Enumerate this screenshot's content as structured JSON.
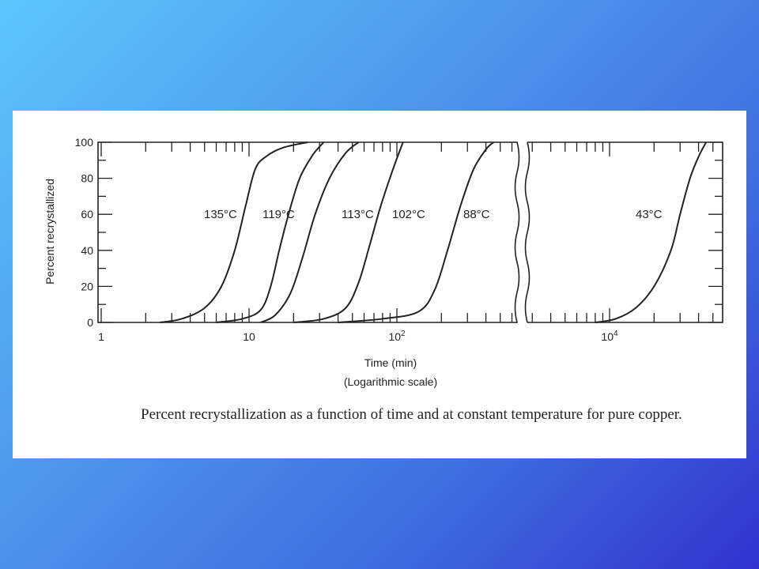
{
  "chart_data": {
    "type": "line",
    "title": "",
    "ylabel": "Percent recrystallized",
    "xlabel": "Time (min)",
    "xlabel_sub": "(Logarithmic scale)",
    "xscale": "log",
    "x_axis_break": true,
    "ylim": [
      0,
      100
    ],
    "yticks": [
      "0",
      "20",
      "40",
      "60",
      "80",
      "100"
    ],
    "xticks": [
      {
        "label": "1",
        "value": 1
      },
      {
        "label": "10",
        "value": 10
      },
      {
        "label": "10",
        "sup": "2",
        "value": 100
      },
      {
        "label": "10",
        "sup": "4",
        "value": 10000
      }
    ],
    "series": [
      {
        "name": "135°C",
        "points": [
          [
            2.5,
            0
          ],
          [
            3.5,
            2
          ],
          [
            5,
            8
          ],
          [
            6.5,
            20
          ],
          [
            8,
            40
          ],
          [
            9.5,
            65
          ],
          [
            11,
            85
          ],
          [
            13,
            92
          ],
          [
            17,
            97
          ],
          [
            25,
            100
          ]
        ]
      },
      {
        "name": "119°C",
        "points": [
          [
            6,
            0
          ],
          [
            9,
            2
          ],
          [
            12,
            7
          ],
          [
            14,
            20
          ],
          [
            16,
            40
          ],
          [
            18.5,
            60
          ],
          [
            22,
            80
          ],
          [
            27,
            93
          ],
          [
            32,
            100
          ]
        ]
      },
      {
        "name": "113°C",
        "points": [
          [
            12,
            0
          ],
          [
            15,
            4
          ],
          [
            19,
            16
          ],
          [
            23,
            36
          ],
          [
            28,
            60
          ],
          [
            35,
            80
          ],
          [
            45,
            94
          ],
          [
            55,
            100
          ]
        ]
      },
      {
        "name": "102°C",
        "points": [
          [
            20,
            0
          ],
          [
            32,
            2
          ],
          [
            45,
            8
          ],
          [
            55,
            22
          ],
          [
            65,
            42
          ],
          [
            78,
            65
          ],
          [
            95,
            86
          ],
          [
            110,
            100
          ]
        ]
      },
      {
        "name": "88°C",
        "points": [
          [
            40,
            0
          ],
          [
            80,
            2
          ],
          [
            140,
            6
          ],
          [
            180,
            18
          ],
          [
            220,
            40
          ],
          [
            270,
            65
          ],
          [
            330,
            85
          ],
          [
            400,
            96
          ],
          [
            450,
            100
          ]
        ]
      },
      {
        "name": "43°C",
        "points": [
          [
            8000,
            0
          ],
          [
            11000,
            2
          ],
          [
            15000,
            8
          ],
          [
            20000,
            20
          ],
          [
            26000,
            40
          ],
          [
            30000,
            60
          ],
          [
            35000,
            80
          ],
          [
            40000,
            92
          ],
          [
            45000,
            100
          ]
        ]
      }
    ]
  },
  "caption": "Percent recrystallization as a function of time and at constant temperature for pure copper."
}
